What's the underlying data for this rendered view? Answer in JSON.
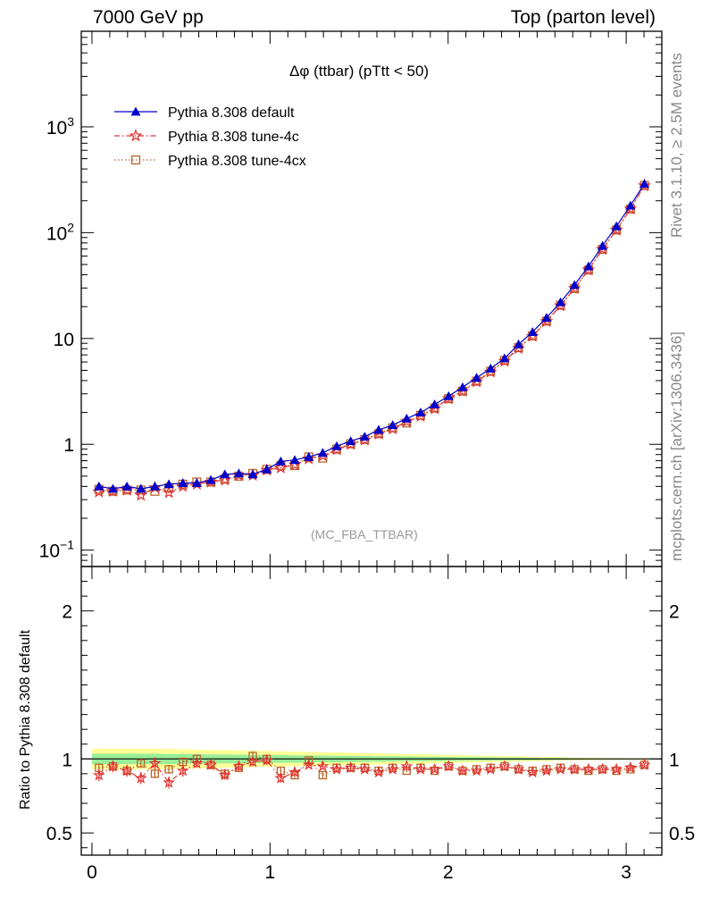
{
  "header": {
    "left": "7000 GeV pp",
    "right": "Top (parton level)"
  },
  "side_labels": {
    "rivet": "Rivet 3.1.10, ≥ 2.5M events",
    "mcplots": "mcplots.cern.ch [arXiv:1306.3436]"
  },
  "chart_data": [
    {
      "type": "line",
      "title": "Δφ (ttbar) (pTtt < 50)",
      "watermark": "(MC_FBA_TTBAR)",
      "xlabel": "",
      "ylabel": "",
      "yscale": "log",
      "xlim": [
        -0.06,
        3.2
      ],
      "ylim": [
        0.07,
        8000
      ],
      "y_tick_labels": [
        "10^-1",
        "1",
        "10",
        "10^2",
        "10^3"
      ],
      "legend_position": "top-left",
      "x": [
        0.0393,
        0.1178,
        0.1963,
        0.2749,
        0.3534,
        0.432,
        0.5105,
        0.589,
        0.6676,
        0.7461,
        0.8247,
        0.9032,
        0.9817,
        1.0603,
        1.1388,
        1.2174,
        1.2959,
        1.3744,
        1.453,
        1.5315,
        1.6101,
        1.6886,
        1.7671,
        1.8457,
        1.9242,
        2.0028,
        2.0813,
        2.1598,
        2.2384,
        2.3169,
        2.3955,
        2.474,
        2.5525,
        2.6311,
        2.7096,
        2.7882,
        2.8667,
        2.9452,
        3.0238,
        3.1023
      ],
      "series": [
        {
          "name": "Pythia 8.308 default",
          "color": "#0000cc",
          "marker": "triangle",
          "values": [
            0.4,
            0.38,
            0.4,
            0.38,
            0.4,
            0.42,
            0.43,
            0.43,
            0.46,
            0.52,
            0.53,
            0.52,
            0.58,
            0.69,
            0.71,
            0.76,
            0.83,
            0.96,
            1.07,
            1.18,
            1.37,
            1.52,
            1.75,
            2.0,
            2.38,
            2.85,
            3.46,
            4.25,
            5.2,
            6.5,
            8.8,
            11.5,
            15.7,
            22.0,
            32.0,
            48.0,
            75.0,
            115.0,
            180.0,
            290.0
          ]
        },
        {
          "name": "Pythia 8.308 tune-4c",
          "color": "#e03030",
          "marker": "star",
          "values": [
            0.355,
            0.36,
            0.37,
            0.33,
            0.39,
            0.35,
            0.4,
            0.42,
            0.44,
            0.46,
            0.51,
            0.51,
            0.57,
            0.6,
            0.64,
            0.73,
            0.78,
            0.89,
            1.0,
            1.1,
            1.25,
            1.4,
            1.64,
            1.84,
            2.17,
            2.7,
            3.18,
            3.9,
            4.82,
            6.12,
            8.05,
            10.5,
            14.5,
            20.4,
            29.7,
            44.6,
            69.8,
            106.0,
            168.0,
            278.0
          ]
        },
        {
          "name": "Pythia 8.308 tune-4cx",
          "color": "#b8652a",
          "marker": "square",
          "values": [
            0.375,
            0.36,
            0.37,
            0.37,
            0.36,
            0.39,
            0.42,
            0.44,
            0.44,
            0.47,
            0.5,
            0.53,
            0.58,
            0.63,
            0.63,
            0.76,
            0.74,
            0.9,
            1.01,
            1.11,
            1.26,
            1.43,
            1.59,
            1.88,
            2.2,
            2.7,
            3.18,
            3.95,
            4.9,
            6.2,
            8.2,
            10.6,
            14.6,
            20.6,
            29.6,
            44.3,
            69.5,
            106.0,
            167.0,
            279.0
          ]
        }
      ]
    },
    {
      "type": "line",
      "title": "",
      "xlabel": "",
      "ylabel": "Ratio to Pythia 8.308 default",
      "xlim": [
        -0.06,
        3.2
      ],
      "ylim": [
        0.35,
        2.3
      ],
      "y_ticks": [
        0.5,
        1,
        2
      ],
      "x_ticks": [
        0,
        1,
        2,
        3
      ],
      "reference_line": 1,
      "band_yellow_halfwidth": [
        0.07,
        0.07,
        0.07,
        0.07,
        0.07,
        0.068,
        0.066,
        0.064,
        0.062,
        0.06,
        0.058,
        0.056,
        0.054,
        0.052,
        0.05,
        0.048,
        0.046,
        0.044,
        0.042,
        0.04,
        0.038,
        0.036,
        0.034,
        0.032,
        0.03,
        0.028,
        0.026,
        0.024,
        0.022,
        0.02,
        0.018,
        0.016,
        0.014,
        0.012,
        0.01,
        0.008,
        0.007,
        0.006,
        0.005,
        0.005
      ],
      "band_green_halfwidth": [
        0.035,
        0.035,
        0.035,
        0.035,
        0.035,
        0.034,
        0.033,
        0.032,
        0.031,
        0.03,
        0.029,
        0.028,
        0.027,
        0.026,
        0.025,
        0.024,
        0.023,
        0.022,
        0.021,
        0.02,
        0.019,
        0.018,
        0.017,
        0.016,
        0.015,
        0.014,
        0.013,
        0.012,
        0.011,
        0.01,
        0.009,
        0.008,
        0.007,
        0.006,
        0.005,
        0.004,
        0.004,
        0.003,
        0.003,
        0.003
      ],
      "series": [
        {
          "name": "Pythia 8.308 tune-4c",
          "color": "#e03030",
          "marker": "star",
          "values": [
            0.89,
            0.95,
            0.92,
            0.87,
            0.97,
            0.84,
            0.92,
            0.97,
            0.96,
            0.89,
            0.95,
            0.98,
            0.99,
            0.87,
            0.91,
            0.96,
            0.95,
            0.93,
            0.94,
            0.93,
            0.91,
            0.93,
            0.95,
            0.93,
            0.93,
            0.95,
            0.92,
            0.92,
            0.93,
            0.95,
            0.93,
            0.91,
            0.92,
            0.93,
            0.93,
            0.93,
            0.93,
            0.93,
            0.94,
            0.96
          ],
          "errors": [
            0.04,
            0.04,
            0.04,
            0.04,
            0.04,
            0.04,
            0.04,
            0.03,
            0.03,
            0.03,
            0.03,
            0.03,
            0.03,
            0.03,
            0.02,
            0.02,
            0.02,
            0.02,
            0.02,
            0.01,
            0.01,
            0.01,
            0.01,
            0.01,
            0.01,
            0.01,
            0.01,
            0.01,
            0.01,
            0.01,
            0.01,
            0.01,
            0.01,
            0.01,
            0.01,
            0.01,
            0.01,
            0.01,
            0.01,
            0.01
          ]
        },
        {
          "name": "Pythia 8.308 tune-4cx",
          "color": "#b8652a",
          "marker": "square",
          "values": [
            0.94,
            0.95,
            0.92,
            0.97,
            0.9,
            0.93,
            0.98,
            1.0,
            0.96,
            0.9,
            0.94,
            1.02,
            1.0,
            0.92,
            0.89,
            0.99,
            0.89,
            0.94,
            0.94,
            0.94,
            0.92,
            0.94,
            0.92,
            0.94,
            0.92,
            0.95,
            0.92,
            0.93,
            0.94,
            0.95,
            0.93,
            0.92,
            0.93,
            0.94,
            0.93,
            0.92,
            0.93,
            0.92,
            0.93,
            0.96
          ],
          "errors": [
            0.03,
            0.03,
            0.03,
            0.03,
            0.03,
            0.03,
            0.03,
            0.03,
            0.03,
            0.03,
            0.03,
            0.03,
            0.02,
            0.02,
            0.02,
            0.02,
            0.02,
            0.02,
            0.01,
            0.01,
            0.01,
            0.01,
            0.01,
            0.01,
            0.01,
            0.01,
            0.01,
            0.01,
            0.01,
            0.01,
            0.01,
            0.01,
            0.01,
            0.01,
            0.01,
            0.01,
            0.01,
            0.01,
            0.01,
            0.01
          ]
        }
      ]
    }
  ]
}
